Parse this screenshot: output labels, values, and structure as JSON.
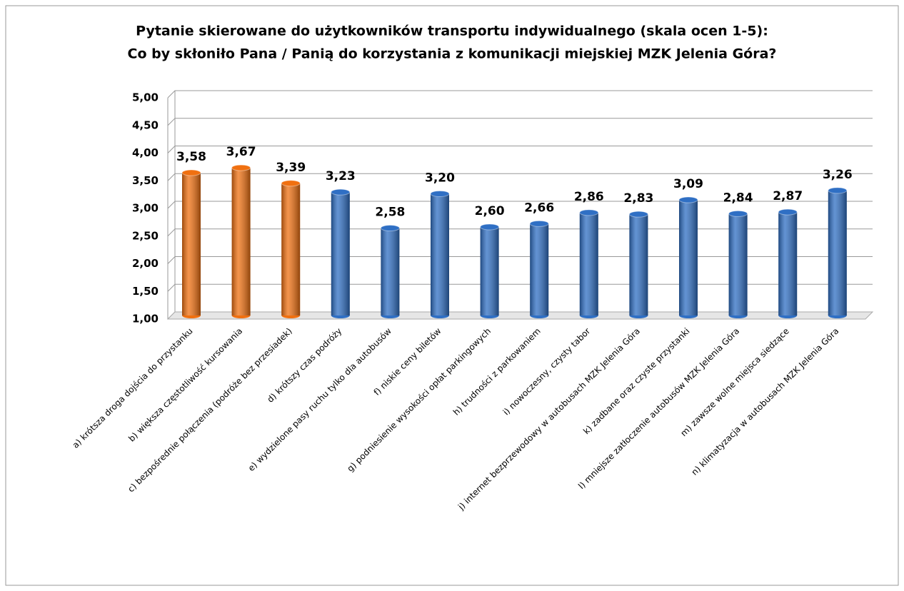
{
  "chart_data": {
    "type": "bar",
    "title": "Pytanie skierowane do użytkowników transportu indywidualnego  (skala ocen 1-5):",
    "subtitle": "Co by skłoniło Pana / Panią do korzystania z komunikacji miejskiej MZK Jelenia Góra?",
    "categories": [
      "a) krótsza droga dojścia do przystanku",
      "b) większa częstotliwość kursowania",
      "c) bezpośrednie połączenia (podróże bez przesiadek)",
      "d) krótszy czas podróży",
      "e) wydzielone pasy ruchu tylko dla autobusów",
      "f) niskie ceny biletów",
      "g) podniesienie wysokości opłat parkingowych",
      "h) trudności z parkowaniem",
      "i) nowoczesny, czysty tabor",
      "j) internet bezprzewodowy w autobusach MZK Jelenia Góra",
      "k) zadbane oraz czyste przystanki",
      "l) mniejsze zatłoczenie autobusów MZK Jelenia Góra",
      "m) zawsze wolne miejsca siedzące",
      "n) klimatyzacja w autobusach MZK Jelenia Góra"
    ],
    "values": [
      3.58,
      3.67,
      3.39,
      3.23,
      2.58,
      3.2,
      2.6,
      2.66,
      2.86,
      2.83,
      3.09,
      2.84,
      2.87,
      3.26
    ],
    "value_labels": [
      "3,58",
      "3,67",
      "3,39",
      "3,23",
      "2,58",
      "3,20",
      "2,60",
      "2,66",
      "2,86",
      "2,83",
      "3,09",
      "2,84",
      "2,87",
      "3,26"
    ],
    "colors": [
      "#f07010",
      "#f07010",
      "#f07010",
      "#2f6fc4",
      "#2f6fc4",
      "#2f6fc4",
      "#2f6fc4",
      "#2f6fc4",
      "#2f6fc4",
      "#2f6fc4",
      "#2f6fc4",
      "#2f6fc4",
      "#2f6fc4",
      "#2f6fc4"
    ],
    "ylim": [
      1,
      5
    ],
    "yticks": [
      {
        "value": 1,
        "label": "1,00"
      },
      {
        "value": 1.5,
        "label": "1,50"
      },
      {
        "value": 2,
        "label": "2,00"
      },
      {
        "value": 2.5,
        "label": "2,50"
      },
      {
        "value": 3,
        "label": "3,00"
      },
      {
        "value": 3.5,
        "label": "3,50"
      },
      {
        "value": 4,
        "label": "4,00"
      },
      {
        "value": 4.5,
        "label": "4,50"
      },
      {
        "value": 5,
        "label": "5,00"
      }
    ],
    "grid": true
  }
}
